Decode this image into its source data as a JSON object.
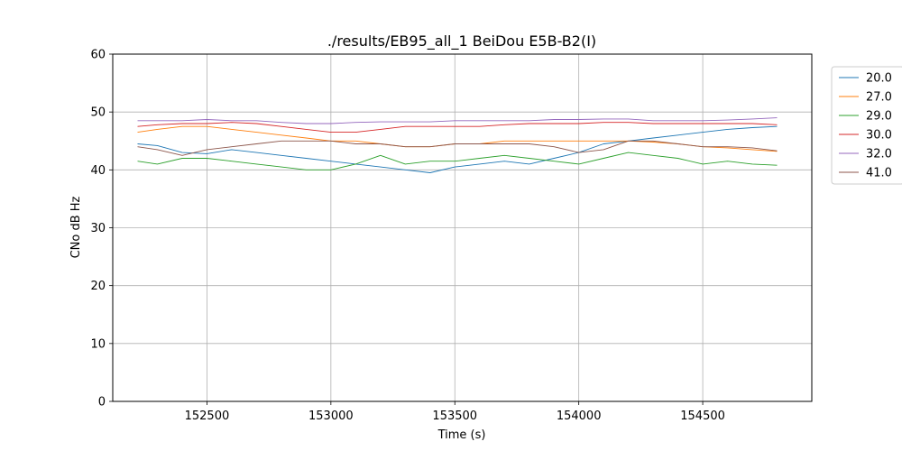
{
  "chart_data": {
    "type": "line",
    "title": "./results/EB95_all_1 BeiDou E5B-B2(I)",
    "xlabel": "Time (s)",
    "ylabel": "CNo dB Hz",
    "xlim": [
      152120,
      154940
    ],
    "ylim": [
      0,
      60
    ],
    "x_ticks": [
      152500,
      153000,
      153500,
      154000,
      154500
    ],
    "y_ticks": [
      0,
      10,
      20,
      30,
      40,
      50,
      60
    ],
    "grid": true,
    "legend_position": "outside-right-top",
    "series": [
      {
        "name": "20.0",
        "color": "#1f77b4",
        "x": [
          152220,
          152300,
          152400,
          152500,
          152600,
          152700,
          152800,
          152900,
          153000,
          153100,
          153200,
          153300,
          153400,
          153500,
          153600,
          153700,
          153800,
          153900,
          154000,
          154100,
          154200,
          154300,
          154400,
          154500,
          154600,
          154700,
          154800
        ],
        "y": [
          44.5,
          44.2,
          43.0,
          42.8,
          43.5,
          43.0,
          42.5,
          42.0,
          41.5,
          41.0,
          40.5,
          40.0,
          39.5,
          40.5,
          41.0,
          41.5,
          41.0,
          42.0,
          43.0,
          44.5,
          45.0,
          45.5,
          46.0,
          46.5,
          47.0,
          47.3,
          47.5
        ]
      },
      {
        "name": "27.0",
        "color": "#ff7f0e",
        "x": [
          152220,
          152300,
          152400,
          152500,
          152600,
          152700,
          152800,
          152900,
          153000,
          153100,
          153200,
          153300,
          153400,
          153500,
          153600,
          153700,
          153800,
          153900,
          154000,
          154100,
          154200,
          154300,
          154400,
          154500,
          154600,
          154700,
          154800
        ],
        "y": [
          46.5,
          47.0,
          47.5,
          47.5,
          47.0,
          46.5,
          46.0,
          45.5,
          45.0,
          45.0,
          44.5,
          44.0,
          44.0,
          44.5,
          44.5,
          45.0,
          45.0,
          45.0,
          45.0,
          45.0,
          45.0,
          44.8,
          44.5,
          44.0,
          43.8,
          43.5,
          43.2
        ]
      },
      {
        "name": "29.0",
        "color": "#2ca02c",
        "x": [
          152220,
          152300,
          152400,
          152500,
          152600,
          152700,
          152800,
          152900,
          153000,
          153100,
          153200,
          153300,
          153400,
          153500,
          153600,
          153700,
          153800,
          153900,
          154000,
          154100,
          154200,
          154300,
          154400,
          154500,
          154600,
          154700,
          154800
        ],
        "y": [
          41.5,
          41.0,
          42.0,
          42.0,
          41.5,
          41.0,
          40.5,
          40.0,
          40.0,
          41.0,
          42.5,
          41.0,
          41.5,
          41.5,
          42.0,
          42.5,
          42.0,
          41.5,
          41.0,
          42.0,
          43.0,
          42.5,
          42.0,
          41.0,
          41.5,
          41.0,
          40.8
        ]
      },
      {
        "name": "30.0",
        "color": "#d62728",
        "x": [
          152220,
          152300,
          152400,
          152500,
          152600,
          152700,
          152800,
          152900,
          153000,
          153100,
          153200,
          153300,
          153400,
          153500,
          153600,
          153700,
          153800,
          153900,
          154000,
          154100,
          154200,
          154300,
          154400,
          154500,
          154600,
          154700,
          154800
        ],
        "y": [
          47.5,
          47.8,
          48.0,
          48.0,
          48.2,
          48.0,
          47.5,
          47.0,
          46.5,
          46.5,
          47.0,
          47.5,
          47.5,
          47.5,
          47.5,
          47.8,
          48.0,
          48.0,
          48.0,
          48.2,
          48.2,
          48.0,
          48.0,
          48.0,
          48.0,
          48.0,
          47.8
        ]
      },
      {
        "name": "32.0",
        "color": "#9467bd",
        "x": [
          152220,
          152300,
          152400,
          152500,
          152600,
          152700,
          152800,
          152900,
          153000,
          153100,
          153200,
          153300,
          153400,
          153500,
          153600,
          153700,
          153800,
          153900,
          154000,
          154100,
          154200,
          154300,
          154400,
          154500,
          154600,
          154700,
          154800
        ],
        "y": [
          48.5,
          48.5,
          48.5,
          48.7,
          48.5,
          48.5,
          48.2,
          48.0,
          48.0,
          48.2,
          48.3,
          48.3,
          48.3,
          48.5,
          48.5,
          48.5,
          48.5,
          48.7,
          48.7,
          48.8,
          48.8,
          48.5,
          48.5,
          48.5,
          48.6,
          48.8,
          49.0
        ]
      },
      {
        "name": "41.0",
        "color": "#8c564b",
        "x": [
          152220,
          152300,
          152400,
          152500,
          152600,
          152700,
          152800,
          152900,
          153000,
          153100,
          153200,
          153300,
          153400,
          153500,
          153600,
          153700,
          153800,
          153900,
          154000,
          154100,
          154200,
          154300,
          154400,
          154500,
          154600,
          154700,
          154800
        ],
        "y": [
          44.0,
          43.5,
          42.5,
          43.5,
          44.0,
          44.5,
          45.0,
          45.0,
          45.0,
          44.5,
          44.5,
          44.0,
          44.0,
          44.5,
          44.5,
          44.5,
          44.5,
          44.0,
          43.0,
          43.5,
          45.0,
          45.0,
          44.5,
          44.0,
          44.0,
          43.8,
          43.3
        ]
      }
    ]
  }
}
